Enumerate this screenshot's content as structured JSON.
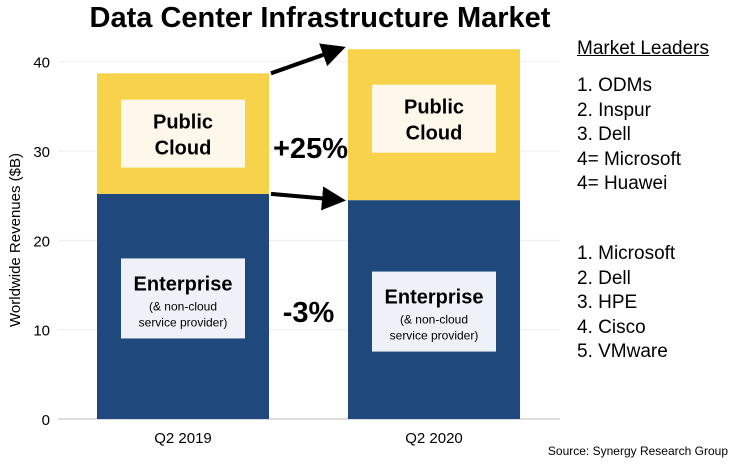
{
  "chart_data": {
    "type": "bar",
    "stacked": true,
    "title": "Data Center Infrastructure Market",
    "ylabel": "Worldwide Revenues ($B)",
    "xlabel": "",
    "categories": [
      "Q2 2019",
      "Q2 2020"
    ],
    "ylim": [
      0,
      40
    ],
    "yticks": [
      0,
      10,
      20,
      30,
      40
    ],
    "grid": true,
    "series": [
      {
        "name": "Enterprise",
        "sublabel": "(& non-cloud service provider)",
        "color": "#1f497d",
        "values": [
          25.2,
          24.5
        ],
        "change": "-3%"
      },
      {
        "name": "Public Cloud",
        "color": "#f7d24a",
        "values": [
          13.5,
          16.9
        ],
        "change": "+25%"
      }
    ],
    "source": "Source: Synergy Research Group"
  },
  "leaders": {
    "title": "Market Leaders",
    "public_cloud": [
      "1.  ODMs",
      "2.  Inspur",
      "3.  Dell",
      "4=  Microsoft",
      "4=  Huawei"
    ],
    "enterprise": [
      "1.  Microsoft",
      "2.  Dell",
      "3.  HPE",
      "4.  Cisco",
      "5.  VMware"
    ]
  }
}
